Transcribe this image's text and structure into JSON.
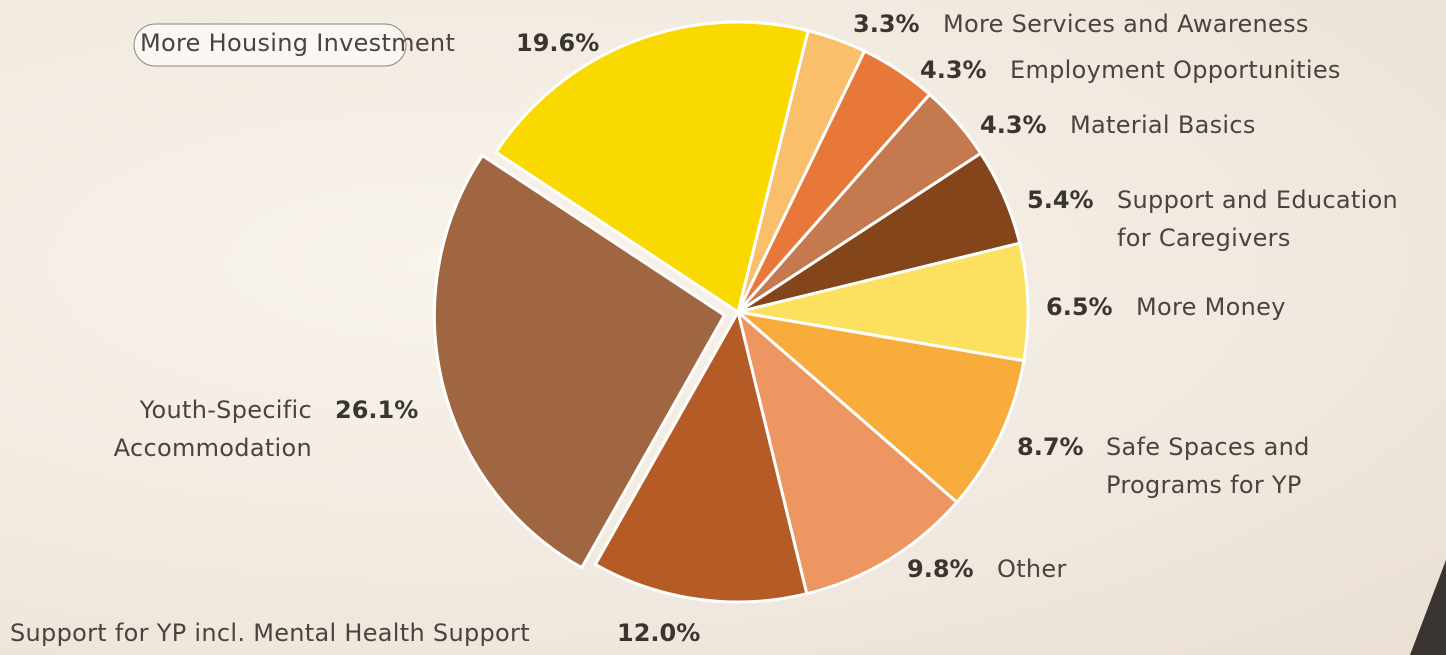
{
  "chart_data": {
    "type": "pie",
    "categories": [
      "More Services and Awareness",
      "Employment Opportunities",
      "Material Basics",
      "Support and Education\nfor Caregivers",
      "More Money",
      "Safe Spaces and\nPrograms for YP",
      "Other",
      "Support for YP incl. Mental Health Support",
      "Youth-Specific\nAccommodation",
      "More Housing Investment"
    ],
    "values": [
      3.3,
      4.3,
      4.3,
      5.4,
      6.5,
      8.7,
      9.8,
      12.0,
      26.1,
      19.6
    ],
    "value_labels": [
      "3.3%",
      "4.3%",
      "4.3%",
      "5.4%",
      "6.5%",
      "8.7%",
      "9.8%",
      "12.0%",
      "26.1%",
      "19.6%"
    ],
    "colors": [
      "#f9bf6a",
      "#e8783a",
      "#c47a4e",
      "#85451b",
      "#fce060",
      "#f8ac3c",
      "#ee9661",
      "#b55b26",
      "#a06642",
      "#f9d900"
    ]
  }
}
